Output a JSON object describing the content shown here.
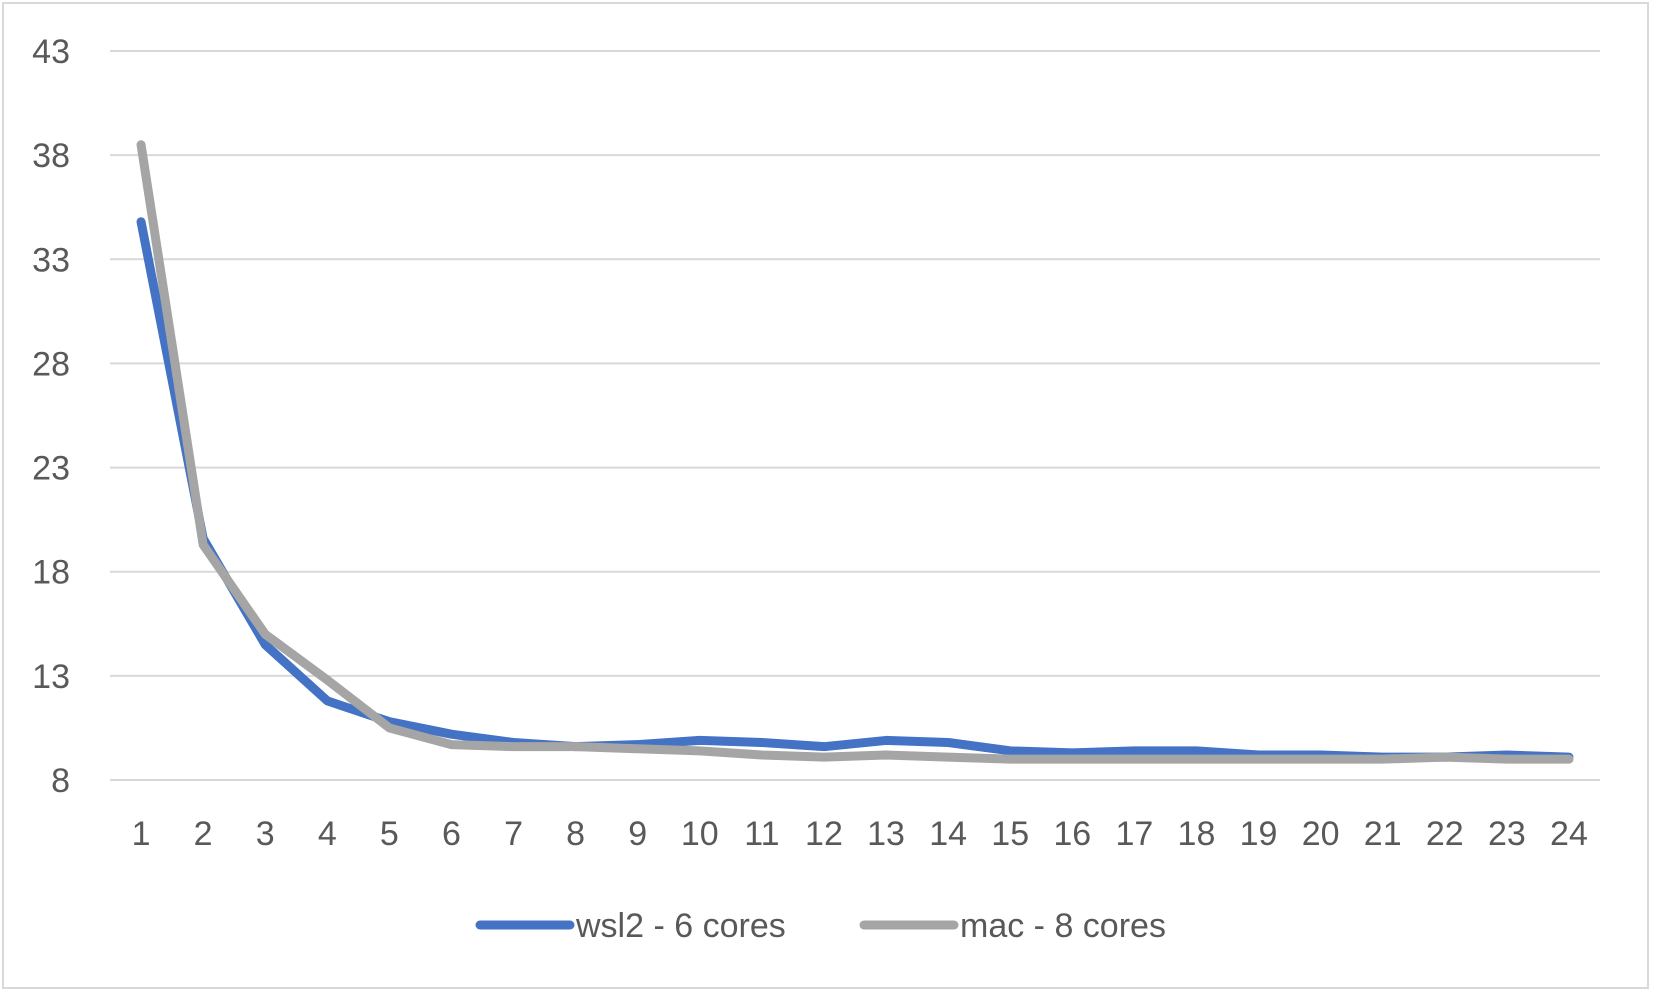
{
  "chart_data": {
    "type": "line",
    "title": "",
    "xlabel": "",
    "ylabel": "",
    "categories": [
      "1",
      "2",
      "3",
      "4",
      "5",
      "6",
      "7",
      "8",
      "9",
      "10",
      "11",
      "12",
      "13",
      "14",
      "15",
      "16",
      "17",
      "18",
      "19",
      "20",
      "21",
      "22",
      "23",
      "24"
    ],
    "y_ticks": [
      8,
      13,
      18,
      23,
      28,
      33,
      38,
      43
    ],
    "ylim": [
      8,
      43
    ],
    "grid": "horizontal",
    "legend_position": "bottom",
    "series": [
      {
        "name": "wsl2 - 6 cores",
        "color": "#4472c4",
        "values": [
          34.8,
          19.6,
          14.5,
          11.8,
          10.8,
          10.2,
          9.8,
          9.6,
          9.7,
          9.9,
          9.8,
          9.6,
          9.9,
          9.8,
          9.4,
          9.3,
          9.4,
          9.4,
          9.2,
          9.2,
          9.1,
          9.1,
          9.2,
          9.1
        ]
      },
      {
        "name": "mac - 8 cores",
        "color": "#a5a5a5",
        "values": [
          38.5,
          19.3,
          15.0,
          12.8,
          10.5,
          9.7,
          9.6,
          9.6,
          9.5,
          9.4,
          9.2,
          9.1,
          9.2,
          9.1,
          9.0,
          9.0,
          9.0,
          9.0,
          9.0,
          9.0,
          9.0,
          9.1,
          9.0,
          9.0
        ]
      }
    ]
  }
}
